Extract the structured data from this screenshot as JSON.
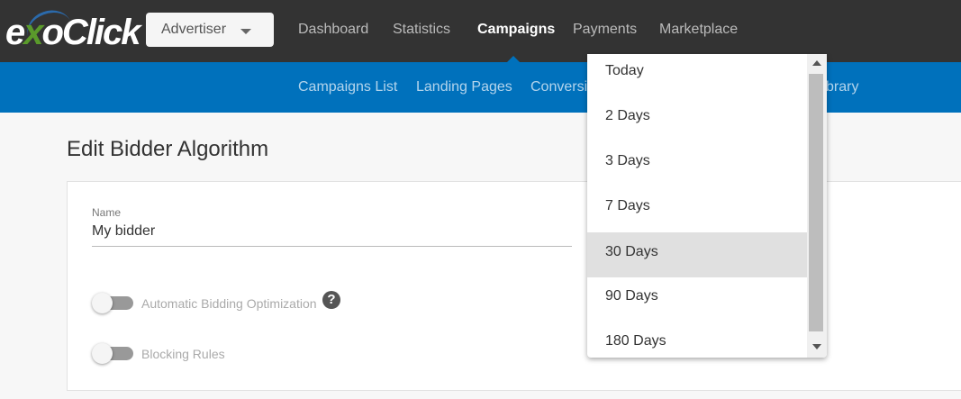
{
  "header": {
    "logo": "exoClick",
    "account_selector": "Advertiser",
    "nav": [
      "Dashboard",
      "Statistics",
      "Campaigns",
      "Payments",
      "Marketplace"
    ],
    "active_nav": "Campaigns"
  },
  "subnav": [
    "Campaigns List",
    "Landing Pages",
    "Conversi",
    "brary"
  ],
  "page": {
    "title": "Edit Bidder Algorithm",
    "name_label": "Name",
    "name_value": "My bidder",
    "toggle_abo": "Automatic Bidding Optimization",
    "toggle_abo_on": false,
    "toggle_blocking": "Blocking Rules",
    "toggle_blocking_on": false
  },
  "dropdown": {
    "options": [
      "Today",
      "2 Days",
      "3 Days",
      "7 Days",
      "30 Days",
      "90 Days",
      "180 Days"
    ],
    "highlighted": "30 Days"
  },
  "colors": {
    "header": "#333333",
    "subnav": "#0071bc"
  }
}
